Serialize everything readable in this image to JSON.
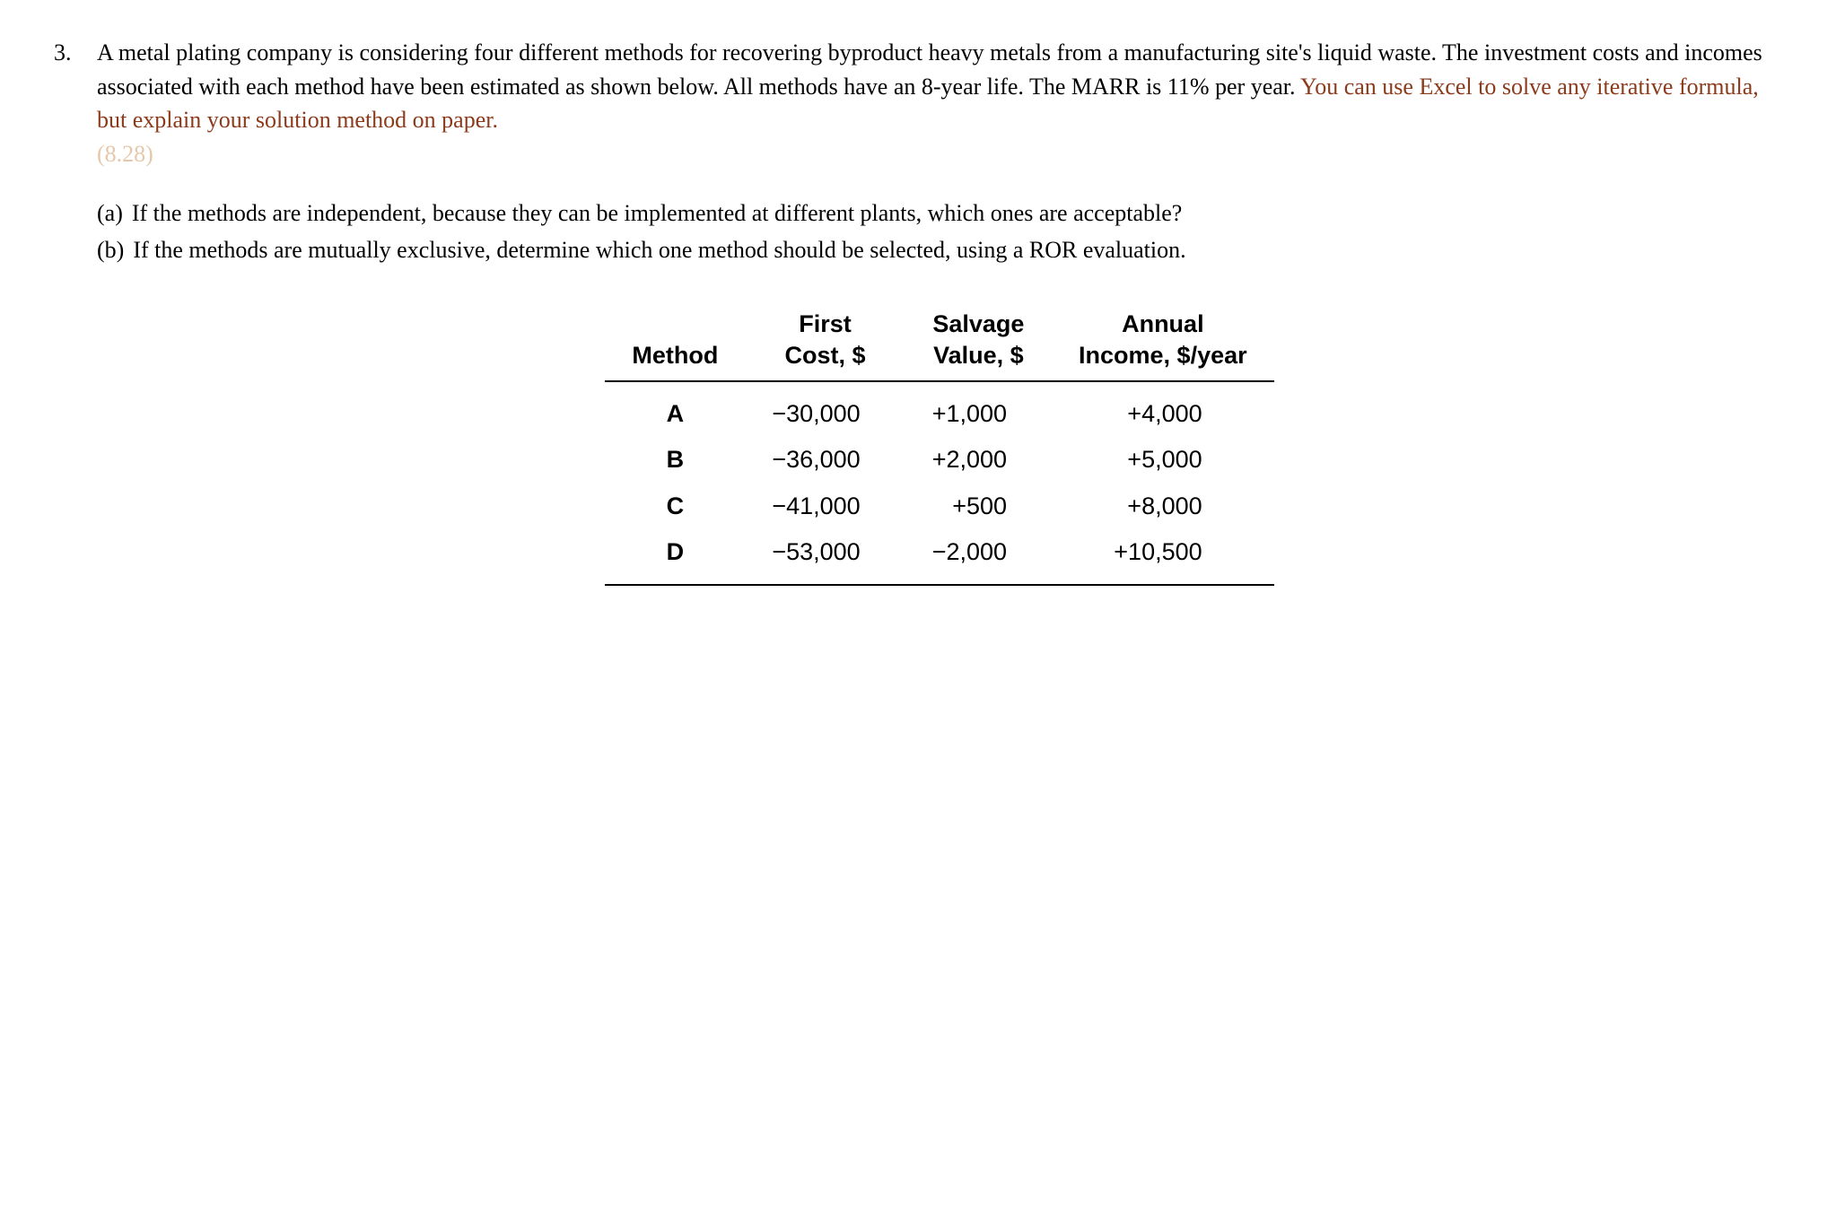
{
  "problem": {
    "number": "3.",
    "main_text_part1": "A metal plating company is considering four different methods for recovering byproduct heavy metals from a manufacturing site's liquid waste. The investment costs and incomes associated with each method have been estimated as shown below. All methods have an 8-year life. The MARR is 11% per year. ",
    "main_text_highlight": "You can use Excel to solve any iterative formula, but explain your solution method on paper.",
    "faded_ref": "(8.28)",
    "parts": [
      {
        "label": "(a)",
        "text": "If the methods are independent, because they can be implemented at different plants, which ones are acceptable?"
      },
      {
        "label": "(b)",
        "text": "If the methods are mutually exclusive, determine which one method should be selected, using a ROR evaluation."
      }
    ]
  },
  "table": {
    "columns": [
      {
        "line1": "",
        "line2": "Method"
      },
      {
        "line1": "First",
        "line2": "Cost, $"
      },
      {
        "line1": "Salvage",
        "line2": "Value, $"
      },
      {
        "line1": "Annual",
        "line2": "Income, $/year"
      }
    ],
    "rows": [
      {
        "method": "A",
        "first_cost": "−30,000",
        "salvage": "+1,000",
        "income": "+4,000"
      },
      {
        "method": "B",
        "first_cost": "−36,000",
        "salvage": "+2,000",
        "income": "+5,000"
      },
      {
        "method": "C",
        "first_cost": "−41,000",
        "salvage": "+500",
        "income": "+8,000"
      },
      {
        "method": "D",
        "first_cost": "−53,000",
        "salvage": "−2,000",
        "income": "+10,500"
      }
    ],
    "styling": {
      "header_font_family": "Arial",
      "header_font_weight": "bold",
      "header_fontsize": 27,
      "body_fontsize": 27,
      "border_color": "#000000",
      "border_width": 2,
      "text_color": "#000000",
      "background_color": "#ffffff"
    }
  },
  "styling": {
    "body_font_family": "Georgia",
    "body_fontsize": 26,
    "text_color": "#000000",
    "highlight_color": "#8b3a1a",
    "faded_color": "#d4a574",
    "background_color": "#ffffff",
    "line_height": 1.45
  }
}
